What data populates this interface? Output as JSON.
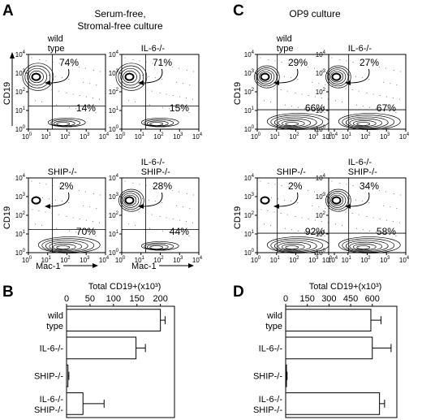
{
  "panels": {
    "A": {
      "letter": "A",
      "header_line1": "Serum-free,",
      "header_line2": "Stromal-free culture"
    },
    "B": {
      "letter": "B"
    },
    "C": {
      "letter": "C",
      "header_line1": "OP9 culture"
    },
    "D": {
      "letter": "D"
    }
  },
  "flow_axes": {
    "ylabel": "CD19",
    "xlabel": "Mac-1",
    "ticks": [
      "10^0",
      "10^1",
      "10^2",
      "10^3",
      "10^4"
    ]
  },
  "flow_plots": [
    {
      "id": "A-wt",
      "label1": "wild",
      "label2": "type",
      "cd19_pct": "74%",
      "mac1_pct": "14%"
    },
    {
      "id": "A-il6",
      "label1": "IL-6-/-",
      "label2": "",
      "cd19_pct": "71%",
      "mac1_pct": "15%"
    },
    {
      "id": "A-ship",
      "label1": "SHIP-/-",
      "label2": "",
      "cd19_pct": "2%",
      "mac1_pct": "70%"
    },
    {
      "id": "A-dko",
      "label1": "IL-6-/-",
      "label2": "SHIP-/-",
      "cd19_pct": "28%",
      "mac1_pct": "44%"
    },
    {
      "id": "C-wt",
      "label1": "wild",
      "label2": "type",
      "cd19_pct": "29%",
      "mac1_pct": "66%"
    },
    {
      "id": "C-il6",
      "label1": "IL-6-/-",
      "label2": "",
      "cd19_pct": "27%",
      "mac1_pct": "67%"
    },
    {
      "id": "C-ship",
      "label1": "SHIP-/-",
      "label2": "",
      "cd19_pct": "2%",
      "mac1_pct": "92%"
    },
    {
      "id": "C-dko",
      "label1": "IL-6-/-",
      "label2": "SHIP-/-",
      "cd19_pct": "34%",
      "mac1_pct": "58%"
    }
  ],
  "chart_data": [
    {
      "type": "bar",
      "panel": "B",
      "title": "Total CD19+(x10³)",
      "orientation": "horizontal",
      "categories": [
        "wild type",
        "IL-6-/-",
        "SHIP-/-",
        "IL-6-/- SHIP-/-"
      ],
      "values": [
        200,
        148,
        3,
        35
      ],
      "errors": [
        10,
        20,
        2,
        45
      ],
      "xlim": [
        0,
        230
      ],
      "xticks": [
        0,
        50,
        100,
        150,
        200
      ]
    },
    {
      "type": "bar",
      "panel": "D",
      "title": "Total CD19+(x10³)",
      "orientation": "horizontal",
      "categories": [
        "wild type",
        "IL-6-/-",
        "SHIP-/-",
        "IL-6-/- SHIP-/-"
      ],
      "values": [
        590,
        600,
        5,
        650
      ],
      "errors": [
        70,
        130,
        5,
        35
      ],
      "xlim": [
        0,
        770
      ],
      "xticks": [
        0,
        150,
        300,
        450,
        600
      ]
    }
  ]
}
